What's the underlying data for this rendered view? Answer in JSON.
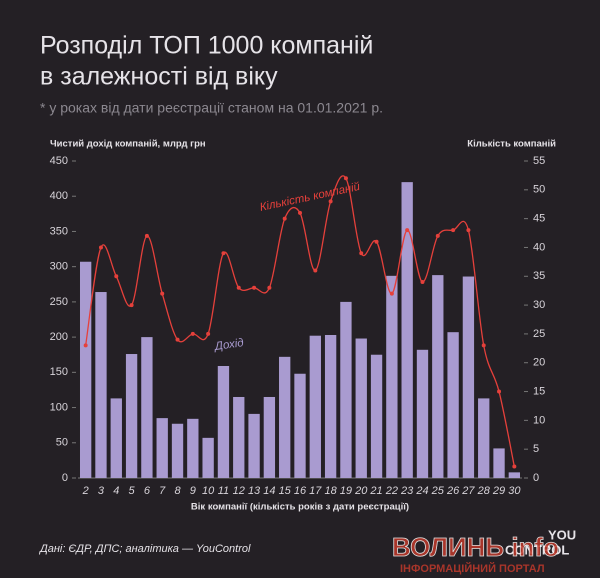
{
  "chart_data": {
    "type": "bar-line",
    "title": [
      "Розподіл ТОП 1000 компаній",
      "в залежності від віку"
    ],
    "subtitle": "* у роках від дати реєстрації станом на 01.01.2021 р.",
    "ylabel": "Чистий дохід компаній, млрд грн",
    "y2label": "Кількість компаній",
    "xlabel": "Вік компанії (кількість років з дати реєстрації)",
    "categories": [
      "2",
      "3",
      "4",
      "5",
      "6",
      "7",
      "8",
      "9",
      "10",
      "11",
      "12",
      "13",
      "14",
      "15",
      "16",
      "17",
      "18",
      "19",
      "20",
      "21",
      "22",
      "23",
      "24",
      "25",
      "26",
      "27",
      "28",
      "29",
      "30"
    ],
    "series": [
      {
        "name": "Дохід",
        "color": "#a99bd0",
        "kind": "bar",
        "values": [
          307,
          264,
          113,
          176,
          200,
          85,
          77,
          84,
          57,
          159,
          115,
          91,
          115,
          172,
          148,
          202,
          203,
          250,
          198,
          175,
          287,
          420,
          182,
          288,
          207,
          286,
          113,
          42,
          8
        ]
      },
      {
        "name": "Кількість компаній",
        "color": "#e5403b",
        "kind": "line",
        "axis": "y2",
        "values": [
          23,
          40,
          35,
          30,
          42,
          32,
          24,
          25,
          25,
          39,
          33,
          33,
          33,
          45,
          46,
          36,
          48,
          52,
          39,
          41,
          32,
          43,
          34,
          42,
          43,
          43,
          23,
          15,
          2
        ]
      }
    ],
    "ylim": [
      0,
      450
    ],
    "yticks": [
      0,
      50,
      100,
      150,
      200,
      250,
      300,
      350,
      400,
      450
    ],
    "y2lim": [
      0,
      55
    ],
    "y2ticks": [
      0,
      5,
      10,
      15,
      20,
      25,
      30,
      35,
      40,
      45,
      50,
      55
    ],
    "source": "Дані: ЄДР, ДПС; аналітика — YouControl",
    "logo": [
      "YOU",
      "CONTROL"
    ],
    "watermark": [
      "ВОЛИНЬ info",
      "ІНФОРМАЦІЙНИЙ ПОРТАЛ"
    ]
  }
}
